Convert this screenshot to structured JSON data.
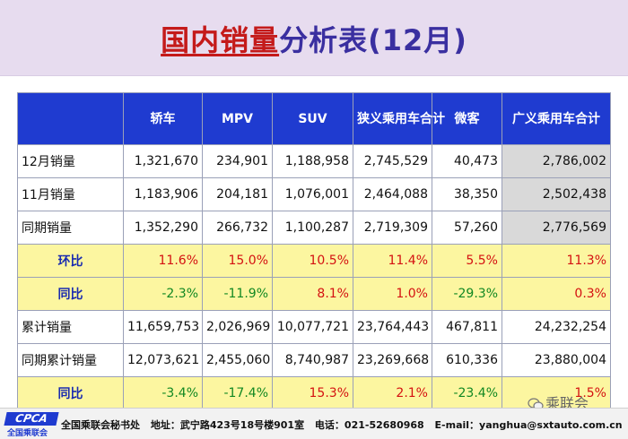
{
  "title": {
    "part1": "国内销量",
    "part2": "分析表(12月)"
  },
  "table": {
    "headers": [
      "轿车",
      "MPV",
      "SUV",
      "狭义乘用车合计",
      "微客",
      "广义乘用车合计"
    ],
    "rows": [
      {
        "label": "12月销量",
        "values": [
          "1,321,670",
          "234,901",
          "1,188,958",
          "2,745,529",
          "40,473",
          "2,786,002"
        ]
      },
      {
        "label": "11月销量",
        "values": [
          "1,183,906",
          "204,181",
          "1,076,001",
          "2,464,088",
          "38,350",
          "2,502,438"
        ]
      },
      {
        "label": "同期销量",
        "values": [
          "1,352,290",
          "266,732",
          "1,100,287",
          "2,719,309",
          "57,260",
          "2,776,569"
        ]
      },
      {
        "label": "环比",
        "values": [
          "11.6%",
          "15.0%",
          "10.5%",
          "11.4%",
          "5.5%",
          "11.3%"
        ]
      },
      {
        "label": "同比",
        "values": [
          "-2.3%",
          "-11.9%",
          "8.1%",
          "1.0%",
          "-29.3%",
          "0.3%"
        ]
      },
      {
        "label": "累计销量",
        "values": [
          "11,659,753",
          "2,026,969",
          "10,077,721",
          "23,764,443",
          "467,811",
          "24,232,254"
        ]
      },
      {
        "label": "同期累计销量",
        "values": [
          "12,073,621",
          "2,455,060",
          "8,740,987",
          "23,269,668",
          "610,336",
          "23,880,004"
        ]
      },
      {
        "label": "同比",
        "values": [
          "-3.4%",
          "-17.4%",
          "15.3%",
          "2.1%",
          "-23.4%",
          "1.5%"
        ]
      }
    ]
  },
  "footer": {
    "logo": "CPCA",
    "logo_sub": "全国乘联会",
    "org": "全国乘联会秘书处",
    "address": "地址：武宁路423号18号楼901室",
    "phone": "电话：021-52680968",
    "email": "E-mail：yanghua@sxtauto.com.cn"
  },
  "watermark": "乘联会",
  "colors": {
    "header_bg": "#1f3bd0",
    "pct_row_bg": "#fcf6a0",
    "negative": "#118822",
    "positive": "#d41111",
    "title_red": "#c41a1a",
    "title_blue": "#3a2fa0"
  }
}
